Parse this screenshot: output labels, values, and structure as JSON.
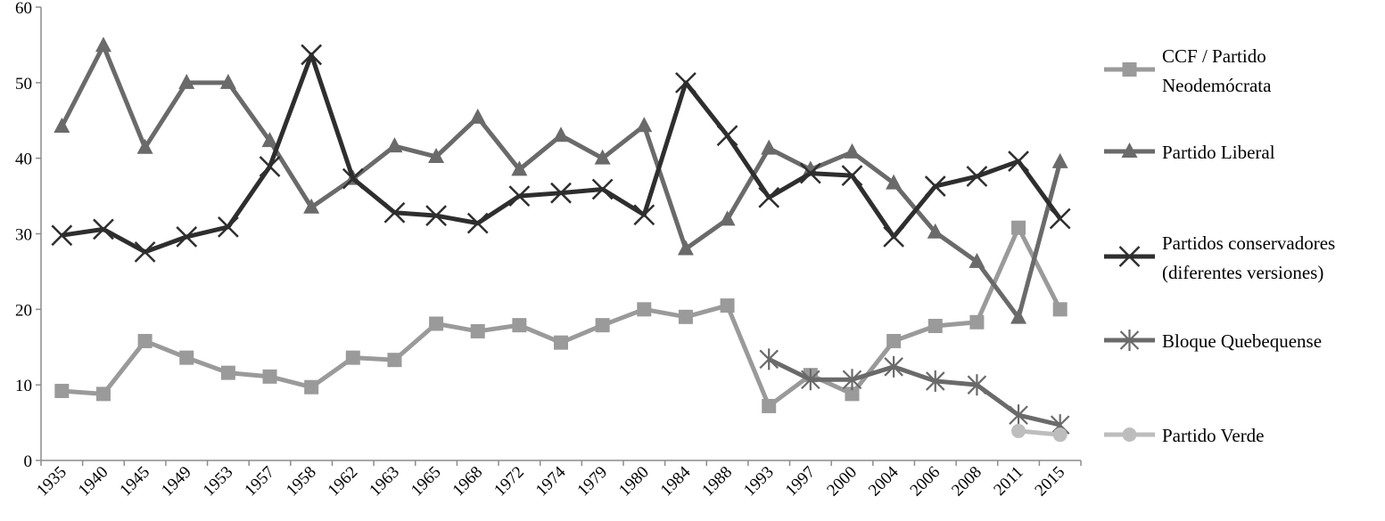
{
  "chart_data": {
    "type": "line",
    "categories": [
      "1935",
      "1940",
      "1945",
      "1949",
      "1953",
      "1957",
      "1958",
      "1962",
      "1963",
      "1965",
      "1968",
      "1972",
      "1974",
      "1979",
      "1980",
      "1984",
      "1988",
      "1993",
      "1997",
      "2000",
      "2004",
      "2006",
      "2008",
      "2011",
      "2015"
    ],
    "ylim": [
      0,
      60
    ],
    "yticks": [
      0,
      10,
      20,
      30,
      40,
      50,
      60
    ],
    "grid": false,
    "legend_position": "right",
    "series": [
      {
        "name_lines": [
          "CCF / Partido",
          "Neodemócrata"
        ],
        "marker": "square",
        "color": "#9a9a9a",
        "values": [
          9.2,
          8.8,
          15.8,
          13.6,
          11.6,
          11.1,
          9.7,
          13.6,
          13.3,
          18.1,
          17.1,
          17.9,
          15.6,
          17.9,
          20.0,
          19.0,
          20.5,
          7.2,
          11.3,
          8.8,
          15.8,
          17.8,
          18.3,
          30.8,
          20.0
        ]
      },
      {
        "name_lines": [
          "Partido Liberal"
        ],
        "marker": "triangle",
        "color": "#6a6a6a",
        "values": [
          44.2,
          54.9,
          41.4,
          50.0,
          50.0,
          42.3,
          33.5,
          37.3,
          41.6,
          40.2,
          45.4,
          38.5,
          43.0,
          40.0,
          44.3,
          28.0,
          31.9,
          41.3,
          38.5,
          40.8,
          36.7,
          30.2,
          26.3,
          18.9,
          39.5
        ]
      },
      {
        "name_lines": [
          "Partidos conservadores",
          "(diferentes versiones)"
        ],
        "marker": "x",
        "color": "#2e2e2e",
        "values": [
          29.8,
          30.6,
          27.6,
          29.6,
          30.9,
          38.9,
          53.7,
          37.3,
          32.8,
          32.4,
          31.4,
          35.0,
          35.4,
          35.9,
          32.5,
          50.0,
          43.0,
          34.8,
          38.0,
          37.7,
          29.6,
          36.3,
          37.6,
          39.6,
          32.0
        ]
      },
      {
        "name_lines": [
          "Bloque Quebequense"
        ],
        "marker": "asterisk",
        "color": "#6a6a6a",
        "values": [
          null,
          null,
          null,
          null,
          null,
          null,
          null,
          null,
          null,
          null,
          null,
          null,
          null,
          null,
          null,
          null,
          null,
          13.4,
          10.7,
          10.7,
          12.4,
          10.5,
          10.0,
          6.0,
          4.7
        ]
      },
      {
        "name_lines": [
          "Partido Verde"
        ],
        "marker": "circle",
        "color": "#bdbdbd",
        "values": [
          null,
          null,
          null,
          null,
          null,
          null,
          null,
          null,
          null,
          null,
          null,
          null,
          null,
          null,
          null,
          null,
          null,
          null,
          null,
          null,
          null,
          null,
          null,
          3.9,
          3.4
        ]
      }
    ]
  }
}
